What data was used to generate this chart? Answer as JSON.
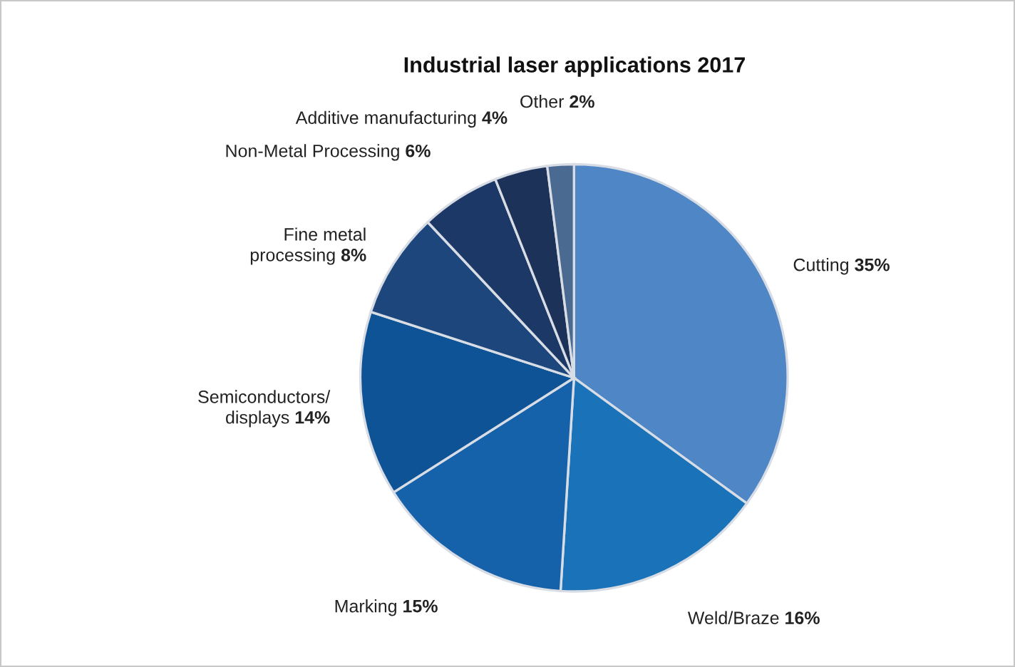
{
  "chart_data": {
    "type": "pie",
    "title": "Industrial laser applications 2017",
    "categories": [
      "Cutting",
      "Weld/Braze",
      "Marking",
      "Semiconductors/\ndisplays",
      "Fine metal\nprocessing",
      "Non-Metal Processing",
      "Additive manufacturing",
      "Other"
    ],
    "values": [
      35,
      16,
      15,
      14,
      8,
      6,
      4,
      2
    ],
    "colors": [
      "#4f86c6",
      "#1a73b8",
      "#1562ab",
      "#0d5396",
      "#1c467c",
      "#1c3866",
      "#1d3259",
      "#4a6a91"
    ],
    "value_labels": [
      "35%",
      "16%",
      "15%",
      "14%",
      "8%",
      "6%",
      "4%",
      "2%"
    ]
  }
}
